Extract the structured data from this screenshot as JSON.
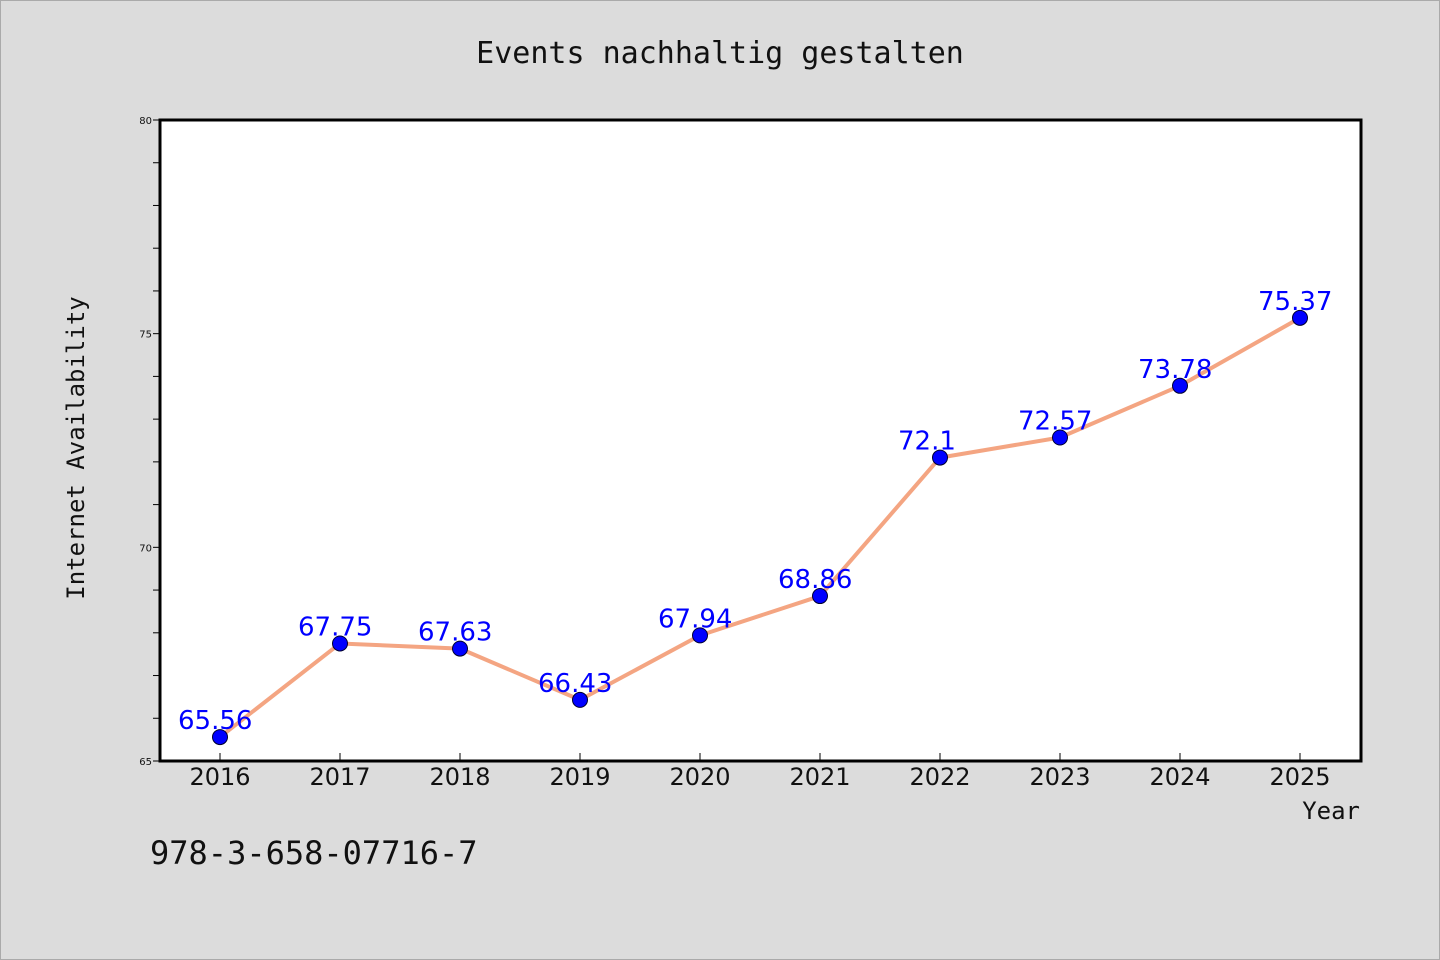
{
  "chart_data": {
    "type": "line",
    "title": "Events nachhaltig gestalten",
    "xlabel": "Year",
    "ylabel": "Internet Availability",
    "categories": [
      "2016",
      "2017",
      "2018",
      "2019",
      "2020",
      "2021",
      "2022",
      "2023",
      "2024",
      "2025"
    ],
    "series": [
      {
        "values": [
          65.56,
          67.75,
          67.63,
          66.43,
          67.94,
          68.86,
          72.1,
          72.57,
          73.78,
          75.37
        ],
        "labels": [
          "65.56",
          "67.75",
          "67.63",
          "66.43",
          "67.94",
          "68.86",
          "72.1",
          "72.57",
          "73.78",
          "75.37"
        ]
      }
    ],
    "ylim": [
      65,
      80
    ],
    "yticks": [
      "65",
      "70",
      "75",
      "80"
    ],
    "grid": false,
    "legend": "none",
    "colors": {
      "line": "#f4a582",
      "marker": "#0000ff",
      "label": "#0000ff",
      "background": "#dcdcdc",
      "plot_background": "#ffffff"
    }
  },
  "footer": {
    "isbn": "978-3-658-07716-7"
  }
}
